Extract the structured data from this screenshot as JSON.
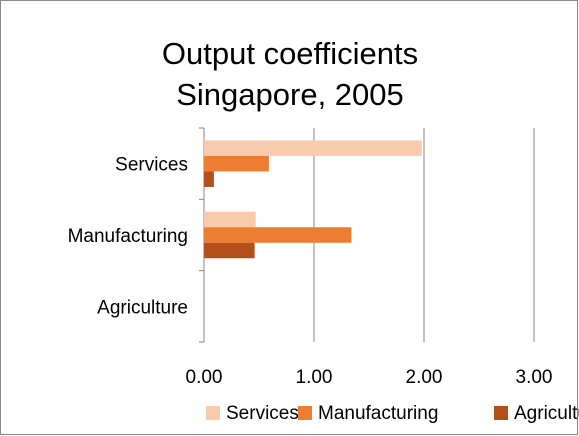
{
  "chart_data": {
    "type": "bar",
    "orientation": "horizontal",
    "title": [
      "Output coefficients",
      "Singapore, 2005"
    ],
    "categories": [
      "Services",
      "Manufacturing",
      "Agriculture"
    ],
    "series": [
      {
        "name": "Services",
        "color": "#f8cbad",
        "values": [
          1.98,
          0.47,
          0
        ]
      },
      {
        "name": "Manufacturing",
        "color": "#ed7d31",
        "values": [
          0.59,
          1.34,
          0
        ]
      },
      {
        "name": "Agriculture",
        "color": "#b34f1a",
        "values": [
          0.09,
          0.46,
          0
        ]
      }
    ],
    "xlim": [
      0,
      3
    ],
    "xticks": [
      {
        "value": 0,
        "label": "0.00"
      },
      {
        "value": 1,
        "label": "1.00"
      },
      {
        "value": 2,
        "label": "2.00"
      },
      {
        "value": 3,
        "label": "3.00"
      }
    ],
    "grid": true,
    "legend": "bottom"
  }
}
